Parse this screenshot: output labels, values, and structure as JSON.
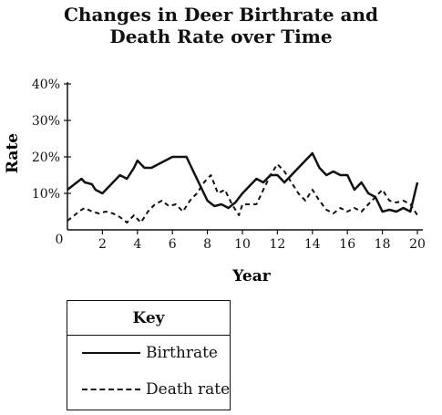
{
  "chart_data": {
    "type": "line",
    "title_line1": "Changes in Deer Birthrate and",
    "title_line2": "Death Rate over Time",
    "xlabel": "Year",
    "ylabel": "Rate",
    "xlim": [
      0,
      20
    ],
    "ylim": [
      0,
      40
    ],
    "x_ticks": [
      0,
      2,
      4,
      6,
      8,
      10,
      12,
      14,
      16,
      18,
      20
    ],
    "x_tick_labels": [
      "0",
      "2",
      "4",
      "6",
      "8",
      "10",
      "12",
      "14",
      "16",
      "18",
      "20"
    ],
    "y_ticks": [
      10,
      20,
      30,
      40
    ],
    "y_tick_labels": [
      "10%",
      "20%",
      "30%",
      "40%"
    ],
    "grid": false,
    "legend": {
      "title": "Key",
      "position": "bottom-left",
      "entries": [
        {
          "label": "Birthrate",
          "style": "solid"
        },
        {
          "label": "Death rate",
          "style": "dashed"
        }
      ]
    },
    "series": [
      {
        "name": "Birthrate",
        "style": "solid",
        "color": "#111111",
        "x": [
          0,
          0.4,
          0.8,
          1.0,
          1.4,
          1.6,
          2.0,
          2.4,
          2.6,
          3.0,
          3.4,
          3.8,
          4.0,
          4.4,
          4.8,
          5.2,
          5.6,
          6.0,
          6.4,
          6.8,
          7.0,
          7.2,
          7.6,
          8.0,
          8.4,
          8.8,
          9.2,
          9.6,
          10.0,
          10.4,
          10.8,
          11.2,
          11.6,
          12.0,
          12.4,
          12.8,
          13.2,
          13.6,
          14.0,
          14.4,
          14.8,
          15.2,
          15.6,
          16.0,
          16.4,
          16.8,
          17.2,
          17.6,
          18.0,
          18.4,
          18.8,
          19.2,
          19.6,
          20.0
        ],
        "y": [
          11,
          12.5,
          14,
          13,
          12.5,
          11,
          10,
          12,
          13,
          15,
          14,
          17,
          19,
          17,
          17,
          18,
          19,
          20,
          20,
          20,
          18,
          16,
          12,
          8,
          6.5,
          7,
          6,
          7.5,
          10,
          12,
          14,
          13,
          15,
          15,
          13,
          15,
          17,
          19,
          21,
          17,
          15,
          16,
          15,
          15,
          11,
          13,
          10,
          9,
          5,
          5.5,
          5,
          6,
          5,
          13
        ]
      },
      {
        "name": "Death rate",
        "style": "dashed",
        "color": "#111111",
        "x": [
          0,
          0.4,
          0.8,
          1.0,
          1.4,
          1.8,
          2.2,
          2.6,
          3.0,
          3.4,
          3.8,
          4.2,
          4.6,
          5.0,
          5.4,
          5.8,
          6.2,
          6.6,
          7.0,
          7.4,
          7.8,
          8.2,
          8.6,
          9.0,
          9.4,
          9.8,
          10.0,
          10.4,
          10.8,
          11.2,
          11.6,
          12.0,
          12.4,
          12.8,
          13.2,
          13.6,
          14.0,
          14.4,
          14.8,
          15.2,
          15.6,
          16.0,
          16.4,
          16.8,
          17.2,
          17.6,
          18.0,
          18.4,
          18.8,
          19.2,
          19.6,
          20.0
        ],
        "y": [
          2.5,
          4,
          5.5,
          6,
          5,
          4.5,
          5,
          4.5,
          3.5,
          2,
          4,
          2,
          5,
          7,
          8,
          6.5,
          7,
          5,
          8,
          10,
          13,
          15,
          10,
          11,
          7,
          4,
          7,
          7,
          7,
          11,
          15,
          18,
          16,
          13,
          10,
          8,
          11,
          8,
          5.5,
          4.5,
          6,
          5,
          6,
          5,
          7,
          9,
          11,
          8,
          7.5,
          8,
          7,
          4
        ]
      }
    ]
  }
}
